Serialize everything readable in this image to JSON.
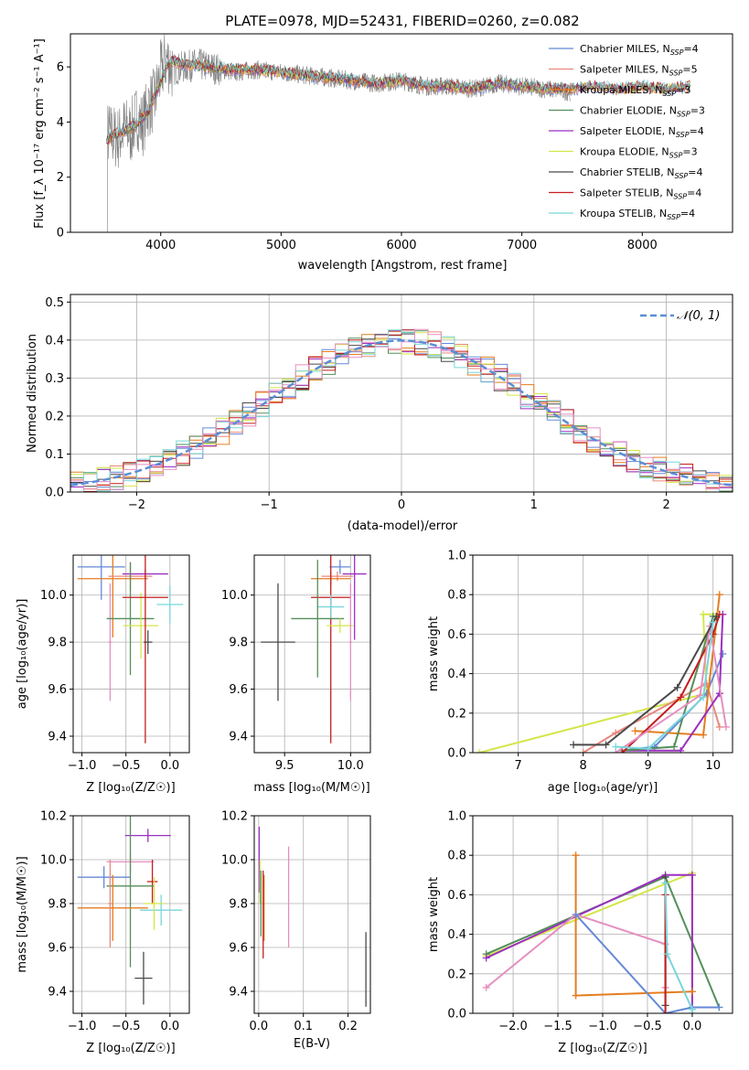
{
  "chart_data": [
    {
      "id": "spectrum",
      "type": "line",
      "title": "PLATE=0978, MJD=52431, FIBERID=0260, z=0.082",
      "xlabel": "wavelength [Angstrom, rest frame]",
      "ylabel": "Flux [f_λ 10⁻¹⁷ erg cm⁻² s⁻¹ A⁻¹]",
      "xlim": [
        3250,
        8750
      ],
      "ylim": [
        0,
        7.2
      ],
      "xticks": [
        4000,
        5000,
        6000,
        7000,
        8000
      ],
      "yticks": [
        0,
        2,
        4,
        6
      ],
      "grid": false,
      "legend_position": "upper-right",
      "data_series": {
        "name": "data",
        "color": "#808080",
        "x": [
          3500,
          3550,
          3600,
          3650,
          3700,
          3750,
          3800,
          3850,
          3900,
          3950,
          4000,
          4050,
          4100,
          4200,
          4300,
          4400,
          4500,
          4600,
          4800,
          5000,
          5200,
          5400,
          5600,
          5800,
          6000,
          6200,
          6400,
          6600,
          6800,
          7000,
          7200,
          7400
        ],
        "y": [
          3.2,
          3.6,
          3.5,
          3.4,
          3.8,
          3.6,
          4.2,
          3.9,
          4.6,
          4.8,
          5.8,
          6.3,
          5.9,
          6.0,
          6.1,
          6.0,
          5.9,
          5.8,
          5.9,
          5.8,
          5.7,
          5.6,
          5.5,
          5.4,
          5.5,
          5.3,
          5.3,
          5.2,
          5.4,
          5.3,
          5.2,
          5.1
        ]
      },
      "model_x": [
        3550,
        3600,
        3700,
        3800,
        3900,
        4000,
        4050,
        4100,
        4200,
        4400,
        4600,
        4800,
        5000,
        5200,
        5400,
        5600,
        5800,
        6000,
        6200,
        6400,
        6600,
        6800,
        7000,
        7200,
        7400,
        7600,
        7800,
        8000,
        8200,
        8400
      ],
      "model_y": [
        3.3,
        3.5,
        3.7,
        3.9,
        4.4,
        5.5,
        6.0,
        6.2,
        6.1,
        6.0,
        5.9,
        5.9,
        5.8,
        5.7,
        5.6,
        5.5,
        5.4,
        5.5,
        5.3,
        5.3,
        5.2,
        5.4,
        5.3,
        5.2,
        5.2,
        5.3,
        5.2,
        5.3,
        5.2,
        5.3
      ],
      "series": [
        {
          "name": "Chabrier MILES, N",
          "sub": "SSP",
          "n": "=4",
          "color": "#6489d6"
        },
        {
          "name": "Salpeter MILES, N",
          "sub": "SSP",
          "n": "=5",
          "color": "#e8887c"
        },
        {
          "name": "Kroupa MILES, N",
          "sub": "SSP",
          "n": "=3",
          "color": "#e57d1f"
        },
        {
          "name": "Chabrier ELODIE, N",
          "sub": "SSP",
          "n": "=3",
          "color": "#548f5a"
        },
        {
          "name": "Salpeter ELODIE, N",
          "sub": "SSP",
          "n": "=4",
          "color": "#9b2fbf"
        },
        {
          "name": "Kroupa ELODIE, N",
          "sub": "SSP",
          "n": "=3",
          "color": "#d4e64a"
        },
        {
          "name": "Chabrier STELIB, N",
          "sub": "SSP",
          "n": "=4",
          "color": "#4a4a4a"
        },
        {
          "name": "Salpeter STELIB, N",
          "sub": "SSP",
          "n": "=4",
          "color": "#c41e1e"
        },
        {
          "name": "Kroupa STELIB, N",
          "sub": "SSP",
          "n": "=4",
          "color": "#79d6da"
        }
      ]
    },
    {
      "id": "residuals",
      "type": "line",
      "xlabel": "(data-model)/error",
      "ylabel": "Normed distribution",
      "xlim": [
        -2.5,
        2.5
      ],
      "ylim": [
        0,
        0.52
      ],
      "xticks": [
        -2,
        -1,
        0,
        1,
        2
      ],
      "xticklabels": [
        "−2",
        "−1",
        "0",
        "1",
        "2"
      ],
      "yticks": [
        0.0,
        0.1,
        0.2,
        0.3,
        0.4,
        0.5
      ],
      "yticklabels": [
        "0.0",
        "0.1",
        "0.2",
        "0.3",
        "0.4",
        "0.5"
      ],
      "grid": true,
      "legend_position": "upper-right",
      "gaussian": {
        "label": "𝒩(0, 1)",
        "color": "#5b8ed6"
      },
      "histogram_bin_width": 0.1,
      "histogram_start": -2.5
    },
    {
      "id": "age-vs-Z",
      "type": "scatter",
      "xlabel": "Z [log₁₀(Z/Z☉)]",
      "ylabel": "age  [log₁₀(age/yr)]",
      "xlim": [
        -1.1,
        0.22
      ],
      "ylim": [
        9.33,
        10.17
      ],
      "xticks": [
        -1.0,
        -0.5,
        0.0
      ],
      "xticklabels": [
        "−1.0",
        "−0.5",
        "0.0"
      ],
      "yticks": [
        9.4,
        9.6,
        9.8,
        10.0
      ],
      "yticklabels": [
        "9.4",
        "9.6",
        "9.8",
        "10.0"
      ],
      "grid": true,
      "points": [
        {
          "color": "#6489d6",
          "x": -0.78,
          "xerr": 0.27,
          "y": 10.12,
          "yerr": 0.14
        },
        {
          "color": "#e57d1f",
          "x": -0.65,
          "xerr": 0.4,
          "y": 10.07,
          "yerr": 0.25
        },
        {
          "color": "#e8887c",
          "x": -0.45,
          "xerr": 0.25,
          "y": 10.08,
          "yerr": 0.06
        },
        {
          "color": "#9b2fbf",
          "x": -0.28,
          "xerr": 0.26,
          "y": 10.09,
          "yerr": 0.02
        },
        {
          "color": "#e58fc1",
          "x": -0.68,
          "xerr": 0.02,
          "y": 9.8,
          "yerr": 0.25
        },
        {
          "color": "#548f5a",
          "x": -0.45,
          "xerr": 0.27,
          "y": 9.9,
          "yerr": 0.24
        },
        {
          "color": "#d4e64a",
          "x": -0.33,
          "xerr": 0.2,
          "y": 9.87,
          "yerr": 0.14
        },
        {
          "color": "#c41e1e",
          "x": -0.28,
          "xerr": 0.26,
          "y": 9.99,
          "yerr": 0.62
        },
        {
          "color": "#4a4a4a",
          "x": -0.25,
          "xerr": 0.05,
          "y": 9.8,
          "yerr": 0.05
        },
        {
          "color": "#79d6da",
          "x": 0.0,
          "xerr": 0.15,
          "y": 9.96,
          "yerr": 0.08
        }
      ]
    },
    {
      "id": "age-vs-mass",
      "type": "scatter",
      "xlabel": "mass [log₁₀(M/M☉)]",
      "xlim": [
        9.27,
        10.15
      ],
      "ylim": [
        9.33,
        10.17
      ],
      "xticks": [
        9.5,
        10.0
      ],
      "xticklabels": [
        "9.5",
        "10.0"
      ],
      "yticks": [
        9.4,
        9.6,
        9.8,
        10.0
      ],
      "yticklabels": [
        "9.4",
        "9.6",
        "9.8",
        "10.0"
      ],
      "grid": true,
      "points": [
        {
          "color": "#6489d6",
          "x": 9.92,
          "xerr": 0.08,
          "y": 10.12,
          "yerr": 0.03
        },
        {
          "color": "#e8887c",
          "x": 9.9,
          "xerr": 0.12,
          "y": 10.08,
          "yerr": 0.02
        },
        {
          "color": "#e57d1f",
          "x": 9.85,
          "xerr": 0.15,
          "y": 10.07,
          "yerr": 0.03
        },
        {
          "color": "#9b2fbf",
          "x": 10.03,
          "xerr": 0.09,
          "y": 10.09,
          "yerr": 0.28
        },
        {
          "color": "#c41e1e",
          "x": 9.85,
          "xerr": 0.15,
          "y": 9.99,
          "yerr": 0.62
        },
        {
          "color": "#79d6da",
          "x": 9.85,
          "xerr": 0.1,
          "y": 9.95,
          "yerr": 0.05
        },
        {
          "color": "#548f5a",
          "x": 9.75,
          "xerr": 0.2,
          "y": 9.9,
          "yerr": 0.25
        },
        {
          "color": "#d4e64a",
          "x": 9.92,
          "xerr": 0.1,
          "y": 9.87,
          "yerr": 0.03
        },
        {
          "color": "#e58fc1",
          "x": 10.0,
          "xerr": 0.01,
          "y": 9.8,
          "yerr": 0.25
        },
        {
          "color": "#4a4a4a",
          "x": 9.45,
          "xerr": 0.13,
          "y": 9.8,
          "yerr": 0.25
        }
      ]
    },
    {
      "id": "weight-vs-age",
      "type": "line",
      "xlabel": "age  [log₁₀(age/yr)]",
      "ylabel": "mass weight",
      "xlim": [
        6.3,
        10.3
      ],
      "ylim": [
        0.0,
        1.0
      ],
      "xticks": [
        7,
        8,
        9,
        10
      ],
      "yticks": [
        0.0,
        0.2,
        0.4,
        0.6,
        0.8,
        1.0
      ],
      "yticklabels": [
        "0.0",
        "0.2",
        "0.4",
        "0.6",
        "0.8",
        "1.0"
      ],
      "grid": true,
      "series": [
        {
          "color": "#d4e64a",
          "x": [
            6.4,
            9.9,
            9.85,
            10.0
          ],
          "y": [
            0.0,
            0.3,
            0.7,
            0.7
          ]
        },
        {
          "color": "#6489d6",
          "x": [
            8.6,
            9.1,
            9.9,
            10.15
          ],
          "y": [
            0.01,
            0.03,
            0.3,
            0.5
          ]
        },
        {
          "color": "#e8887c",
          "x": [
            8.0,
            8.5,
            9.9,
            10.1
          ],
          "y": [
            0.0,
            0.1,
            0.35,
            0.13
          ]
        },
        {
          "color": "#e57d1f",
          "x": [
            8.8,
            9.85,
            10.1
          ],
          "y": [
            0.11,
            0.09,
            0.8
          ]
        },
        {
          "color": "#9b2fbf",
          "x": [
            8.6,
            9.5,
            10.1,
            10.15
          ],
          "y": [
            0.01,
            0.01,
            0.3,
            0.7
          ]
        },
        {
          "color": "#548f5a",
          "x": [
            8.6,
            9.4,
            10.0
          ],
          "y": [
            0.01,
            0.03,
            0.69
          ]
        },
        {
          "color": "#c41e1e",
          "x": [
            8.6,
            9.5,
            10.0,
            10.1
          ],
          "y": [
            0.0,
            0.28,
            0.6,
            0.7
          ]
        },
        {
          "color": "#e58fc1",
          "x": [
            8.5,
            9.8,
            9.95,
            10.2
          ],
          "y": [
            0.0,
            0.29,
            0.64,
            0.13
          ]
        },
        {
          "color": "#4a4a4a",
          "x": [
            7.85,
            8.35,
            9.45,
            10.05
          ],
          "y": [
            0.04,
            0.04,
            0.33,
            0.69
          ]
        },
        {
          "color": "#79d6da",
          "x": [
            8.5,
            9.0,
            9.85,
            10.0
          ],
          "y": [
            0.03,
            0.02,
            0.28,
            0.66
          ]
        }
      ]
    },
    {
      "id": "mass-vs-Z",
      "type": "scatter",
      "xlabel": "Z [log₁₀(Z/Z☉)]",
      "ylabel": "mass [log₁₀(M/M☉)]",
      "xlim": [
        -1.1,
        0.22
      ],
      "ylim": [
        9.3,
        10.2
      ],
      "xticks": [
        -1.0,
        -0.5,
        0.0
      ],
      "xticklabels": [
        "−1.0",
        "−0.5",
        "0.0"
      ],
      "yticks": [
        9.4,
        9.6,
        9.8,
        10.0,
        10.2
      ],
      "yticklabels": [
        "9.4",
        "9.6",
        "9.8",
        "10.0",
        "10.2"
      ],
      "grid": true,
      "points": [
        {
          "color": "#9b2fbf",
          "x": -0.25,
          "xerr": 0.26,
          "y": 10.11,
          "yerr": 0.03
        },
        {
          "color": "#e58fc1",
          "x": -0.45,
          "xerr": 0.27,
          "y": 9.99,
          "yerr": 0.05
        },
        {
          "color": "#6489d6",
          "x": -0.75,
          "xerr": 0.3,
          "y": 9.92,
          "yerr": 0.05
        },
        {
          "color": "#c41e1e",
          "x": -0.2,
          "xerr": 0.06,
          "y": 9.9,
          "yerr": 0.1
        },
        {
          "color": "#548f5a",
          "x": -0.45,
          "xerr": 0.27,
          "y": 9.88,
          "yerr": 0.37
        },
        {
          "color": "#e57d1f",
          "x": -0.65,
          "xerr": 0.4,
          "y": 9.78,
          "yerr": 0.15
        },
        {
          "color": "#79d6da",
          "x": -0.1,
          "xerr": 0.24,
          "y": 9.77,
          "yerr": 0.07
        },
        {
          "color": "#d4e64a",
          "x": -0.18,
          "xerr": 0.12,
          "y": 9.8,
          "yerr": 0.12
        },
        {
          "color": "#e8887c",
          "x": -0.68,
          "xerr": 0.02,
          "y": 9.8,
          "yerr": 0.2
        },
        {
          "color": "#4a4a4a",
          "x": -0.3,
          "xerr": 0.1,
          "y": 9.46,
          "yerr": 0.12
        }
      ]
    },
    {
      "id": "mass-vs-EBV",
      "type": "scatter",
      "xlabel": "E(B-V)",
      "xlim": [
        -0.01,
        0.25
      ],
      "ylim": [
        9.3,
        10.2
      ],
      "xticks": [
        0.0,
        0.1,
        0.2
      ],
      "xticklabels": [
        "0.0",
        "0.1",
        "0.2"
      ],
      "yticks": [
        9.4,
        9.6,
        9.8,
        10.0,
        10.2
      ],
      "yticklabels": [
        "9.4",
        "9.6",
        "9.8",
        "10.0",
        "10.2"
      ],
      "grid": true,
      "points": [
        {
          "color": "#9b2fbf",
          "x": 0.001,
          "xerr": 0.0,
          "y": 10.0,
          "yerr": 0.15
        },
        {
          "color": "#d4e64a",
          "x": 0.003,
          "xerr": 0.0,
          "y": 9.9,
          "yerr": 0.1
        },
        {
          "color": "#548f5a",
          "x": 0.005,
          "xerr": 0.0,
          "y": 9.8,
          "yerr": 0.15
        },
        {
          "color": "#e57d1f",
          "x": 0.012,
          "xerr": 0.0,
          "y": 9.78,
          "yerr": 0.15
        },
        {
          "color": "#c41e1e",
          "x": 0.01,
          "xerr": 0.0,
          "y": 9.75,
          "yerr": 0.2
        },
        {
          "color": "#e58fc1",
          "x": 0.067,
          "xerr": 0.0,
          "y": 9.83,
          "yerr": 0.23
        },
        {
          "color": "#4a4a4a",
          "x": 0.24,
          "xerr": 0.0,
          "y": 9.5,
          "yerr": 0.17
        }
      ]
    },
    {
      "id": "weight-vs-Z",
      "type": "line",
      "xlabel": "Z [log₁₀(Z/Z☉)]",
      "ylabel": "mass weight",
      "xlim": [
        -2.45,
        0.45
      ],
      "ylim": [
        0.0,
        1.0
      ],
      "xticks": [
        -2.0,
        -1.5,
        -1.0,
        -0.5,
        0.0
      ],
      "xticklabels": [
        "−2.0",
        "−1.5",
        "−1.0",
        "−0.5",
        "0.0"
      ],
      "yticks": [
        0.0,
        0.2,
        0.4,
        0.6,
        0.8,
        1.0
      ],
      "yticklabels": [
        "0.0",
        "0.2",
        "0.4",
        "0.6",
        "0.8",
        "1.0"
      ],
      "grid": true,
      "series": [
        {
          "color": "#d4e64a",
          "x": [
            -2.3,
            0.0,
            0.0
          ],
          "y": [
            0.29,
            0.71,
            0.11
          ]
        },
        {
          "color": "#548f5a",
          "x": [
            -2.3,
            -0.3,
            0.3
          ],
          "y": [
            0.3,
            0.69,
            0.03
          ]
        },
        {
          "color": "#9b2fbf",
          "x": [
            -2.3,
            -0.3,
            0.0,
            0.0
          ],
          "y": [
            0.28,
            0.7,
            0.7,
            0.03
          ]
        },
        {
          "color": "#e58fc1",
          "x": [
            -2.3,
            -1.3,
            -0.3,
            -0.3
          ],
          "y": [
            0.13,
            0.5,
            0.35,
            0.13
          ]
        },
        {
          "color": "#e57d1f",
          "x": [
            -1.3,
            -1.3,
            0.0
          ],
          "y": [
            0.8,
            0.09,
            0.11
          ]
        },
        {
          "color": "#6489d6",
          "x": [
            -1.3,
            -0.3,
            0.0,
            0.3
          ],
          "y": [
            0.5,
            0.0,
            0.03,
            0.03
          ]
        },
        {
          "color": "#4a4a4a",
          "x": [
            -0.3,
            -0.3
          ],
          "y": [
            0.69,
            0.04
          ]
        },
        {
          "color": "#c41e1e",
          "x": [
            -0.3,
            -0.3
          ],
          "y": [
            0.6,
            0.0
          ]
        },
        {
          "color": "#79d6da",
          "x": [
            -0.3,
            -0.28,
            0.0,
            0.0
          ],
          "y": [
            0.66,
            0.3,
            0.02,
            0.0
          ]
        }
      ]
    }
  ]
}
